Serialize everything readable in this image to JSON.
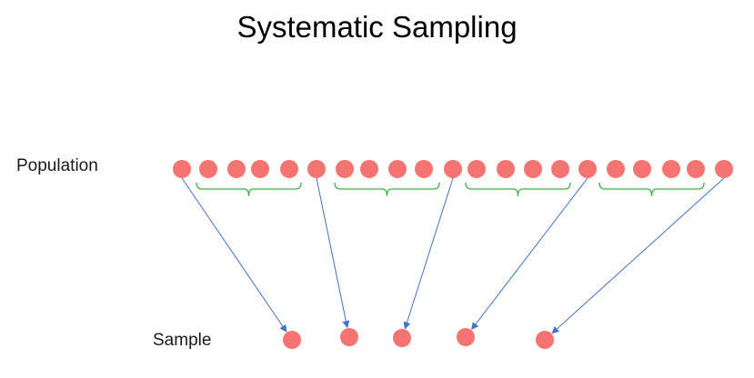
{
  "title": "Systematic Sampling",
  "labels": {
    "population": "Population",
    "sample": "Sample"
  },
  "colors": {
    "dot": "#f57371",
    "bracket": "#3cb44b",
    "arrow": "#4472c4"
  }
}
